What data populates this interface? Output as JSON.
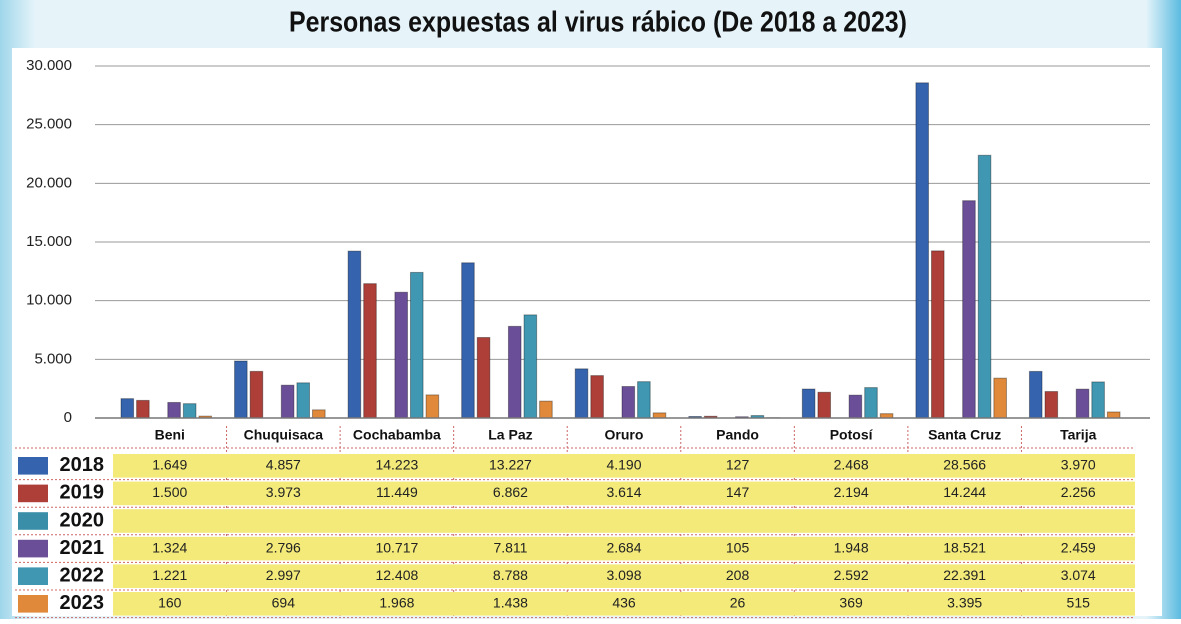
{
  "chart_data": {
    "type": "bar",
    "title": "Personas expuestas al virus rábico (De 2018 a 2023)",
    "categories": [
      "Beni",
      "Chuquisaca",
      "Cochabamba",
      "La Paz",
      "Oruro",
      "Pando",
      "Potosí",
      "Santa Cruz",
      "Tarija"
    ],
    "series": [
      {
        "name": "2018",
        "color": "#3563ad",
        "values": [
          1649,
          4857,
          14223,
          13227,
          4190,
          127,
          2468,
          28566,
          3970
        ],
        "value_labels": [
          "1.649",
          "4.857",
          "14.223",
          "13.227",
          "4.190",
          "127",
          "2.468",
          "28.566",
          "3.970"
        ]
      },
      {
        "name": "2019",
        "color": "#ad3f38",
        "values": [
          1500,
          3973,
          11449,
          6862,
          3614,
          147,
          2194,
          14244,
          2256
        ],
        "value_labels": [
          "1.500",
          "3.973",
          "11.449",
          "6.862",
          "3.614",
          "147",
          "2.194",
          "14.244",
          "2.256"
        ]
      },
      {
        "name": "2020",
        "color": "#3b8ea8",
        "values": [
          null,
          null,
          null,
          null,
          null,
          null,
          null,
          null,
          null
        ]
      },
      {
        "name": "2021",
        "color": "#6a4e98",
        "values": [
          1324,
          2796,
          10717,
          7811,
          2684,
          105,
          1948,
          18521,
          2459
        ],
        "value_labels": [
          "1.324",
          "2.796",
          "10.717",
          "7.811",
          "2.684",
          "105",
          "1.948",
          "18.521",
          "2.459"
        ]
      },
      {
        "name": "2022",
        "color": "#3f97b2",
        "values": [
          1221,
          2997,
          12408,
          8788,
          3098,
          208,
          2592,
          22391,
          3074
        ],
        "value_labels": [
          "1.221",
          "2.997",
          "12.408",
          "8.788",
          "3.098",
          "208",
          "2.592",
          "22.391",
          "3.074"
        ]
      },
      {
        "name": "2023",
        "color": "#e0893a",
        "values": [
          160,
          694,
          1968,
          1438,
          436,
          26,
          369,
          3395,
          515
        ],
        "value_labels": [
          "160",
          "694",
          "1.968",
          "1.438",
          "436",
          "26",
          "369",
          "3.395",
          "515"
        ]
      }
    ],
    "ylim": [
      0,
      30000
    ],
    "yticks": [
      0,
      {
        "value": 5000,
        "label": "5.000"
      },
      {
        "value": 10000,
        "label": "10.000"
      },
      {
        "value": 15000,
        "label": "15.000"
      },
      {
        "value": 20000,
        "label": "20.000"
      },
      {
        "value": 25000,
        "label": "25.000"
      },
      {
        "value": 30000,
        "label": "30.000"
      }
    ],
    "grid": true
  }
}
